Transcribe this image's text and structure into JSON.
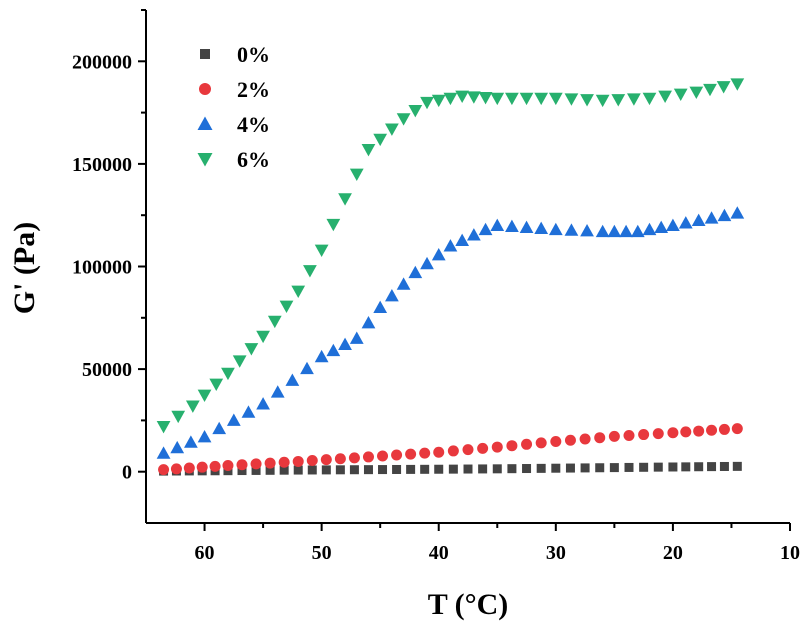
{
  "chart_data": {
    "type": "scatter",
    "title": "",
    "xlabel": "T (°C)",
    "ylabel": "G' (Pa)",
    "xlim": [
      65,
      10
    ],
    "ylim": [
      -25000,
      225000
    ],
    "x_reversed": true,
    "x_ticks": [
      60,
      50,
      40,
      30,
      20,
      10
    ],
    "y_ticks": [
      0,
      50000,
      100000,
      150000,
      200000
    ],
    "x_tick_labels": [
      "60",
      "50",
      "40",
      "30",
      "20",
      "10"
    ],
    "y_tick_labels": [
      "0",
      "50000",
      "100000",
      "150000",
      "200000"
    ],
    "grid": false,
    "legend_position": "top-left",
    "series": [
      {
        "name": "0%",
        "marker": "square",
        "color": "#444444",
        "x": [
          63.5,
          58,
          52,
          46,
          40,
          35,
          30,
          25,
          20,
          14.5
        ],
        "y": [
          300,
          500,
          800,
          1000,
          1200,
          1400,
          1700,
          2000,
          2300,
          2600
        ]
      },
      {
        "name": "2%",
        "marker": "circle",
        "color": "#e8383d",
        "x": [
          63.5,
          58,
          52,
          46,
          40,
          35,
          30,
          25,
          20,
          14.5
        ],
        "y": [
          1000,
          3000,
          5000,
          7200,
          9500,
          12000,
          14700,
          17200,
          19000,
          21000
        ],
        "y_points": [
          1000,
          3000,
          5000,
          7200,
          9500,
          12000,
          14700,
          17200,
          19000,
          21000
        ]
      },
      {
        "name": "4%",
        "marker": "triangle-up",
        "color": "#1f6fd8",
        "x": [
          63.5,
          60,
          55,
          50,
          47,
          45,
          42,
          39,
          36,
          35,
          30,
          26,
          23,
          20,
          14.5
        ],
        "y": [
          9000,
          17000,
          33000,
          56000,
          65000,
          80000,
          97000,
          110000,
          118000,
          120000,
          118000,
          117000,
          117000,
          120000,
          126000
        ]
      },
      {
        "name": "6%",
        "marker": "triangle-down",
        "color": "#27b06e",
        "x": [
          63.5,
          61,
          58,
          55,
          52,
          50,
          48,
          46,
          43,
          41,
          38,
          35,
          30,
          26,
          22,
          18,
          14.5
        ],
        "y": [
          22000,
          32000,
          48000,
          66000,
          88000,
          108000,
          133000,
          157000,
          172000,
          180000,
          183000,
          182000,
          182000,
          181000,
          182000,
          185000,
          189000
        ]
      }
    ]
  }
}
